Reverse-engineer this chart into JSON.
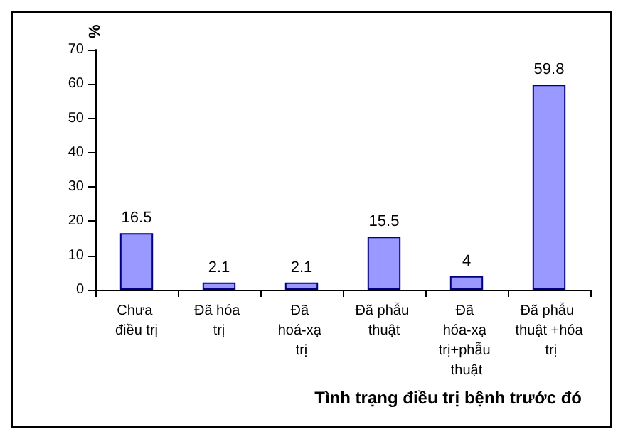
{
  "chart_data": {
    "type": "bar",
    "xlabel": "Tình trạng điều trị bệnh trước đó",
    "ylabel": "%",
    "categories": [
      "Chưa điều trị",
      "Đã hóa trị",
      "Đã hoá-xạ trị",
      "Đã phẫu thuật",
      "Đã hóa-xạ trị+phẫu thuật",
      "Đã phẫu thuật +hóa trị"
    ],
    "values": [
      16.5,
      2.1,
      2.1,
      15.5,
      4,
      59.8
    ],
    "color": "#9999ff",
    "ylim": [
      0,
      70
    ],
    "yticks": [
      0,
      10,
      20,
      30,
      40,
      50,
      60,
      70
    ],
    "data_labels": true,
    "grid": false
  }
}
